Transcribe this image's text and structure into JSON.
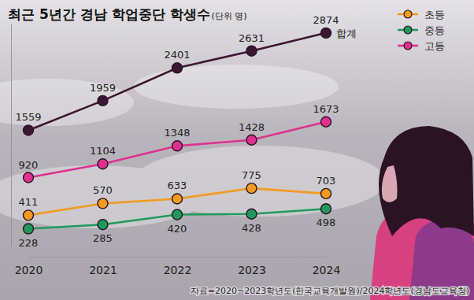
{
  "chart_data": {
    "type": "line",
    "title": "최근 5년간 경남 학업중단 학생수",
    "subtitle": "(단위 명)",
    "annotations": [
      "자료=2020~2023학년도(한국교육개발원)/2024학년도(경남도교육청)"
    ],
    "categories": [
      "2020",
      "2021",
      "2022",
      "2023",
      "2024"
    ],
    "series": [
      {
        "name": "합계",
        "color": "#3b1830",
        "values": [
          1559,
          1959,
          2401,
          2631,
          2874
        ]
      },
      {
        "name": "초등",
        "color": "#f39a1e",
        "values": [
          411,
          570,
          633,
          775,
          703
        ]
      },
      {
        "name": "중등",
        "color": "#1f9a5c",
        "values": [
          228,
          285,
          420,
          428,
          498
        ]
      },
      {
        "name": "고등",
        "color": "#e0308f",
        "values": [
          920,
          1104,
          1348,
          1428,
          1673
        ]
      }
    ],
    "ylim": [
      0,
      3000
    ],
    "tick_labels": "x",
    "data_labels": true,
    "marker": "circle",
    "legend": "upper right",
    "grid": false
  }
}
